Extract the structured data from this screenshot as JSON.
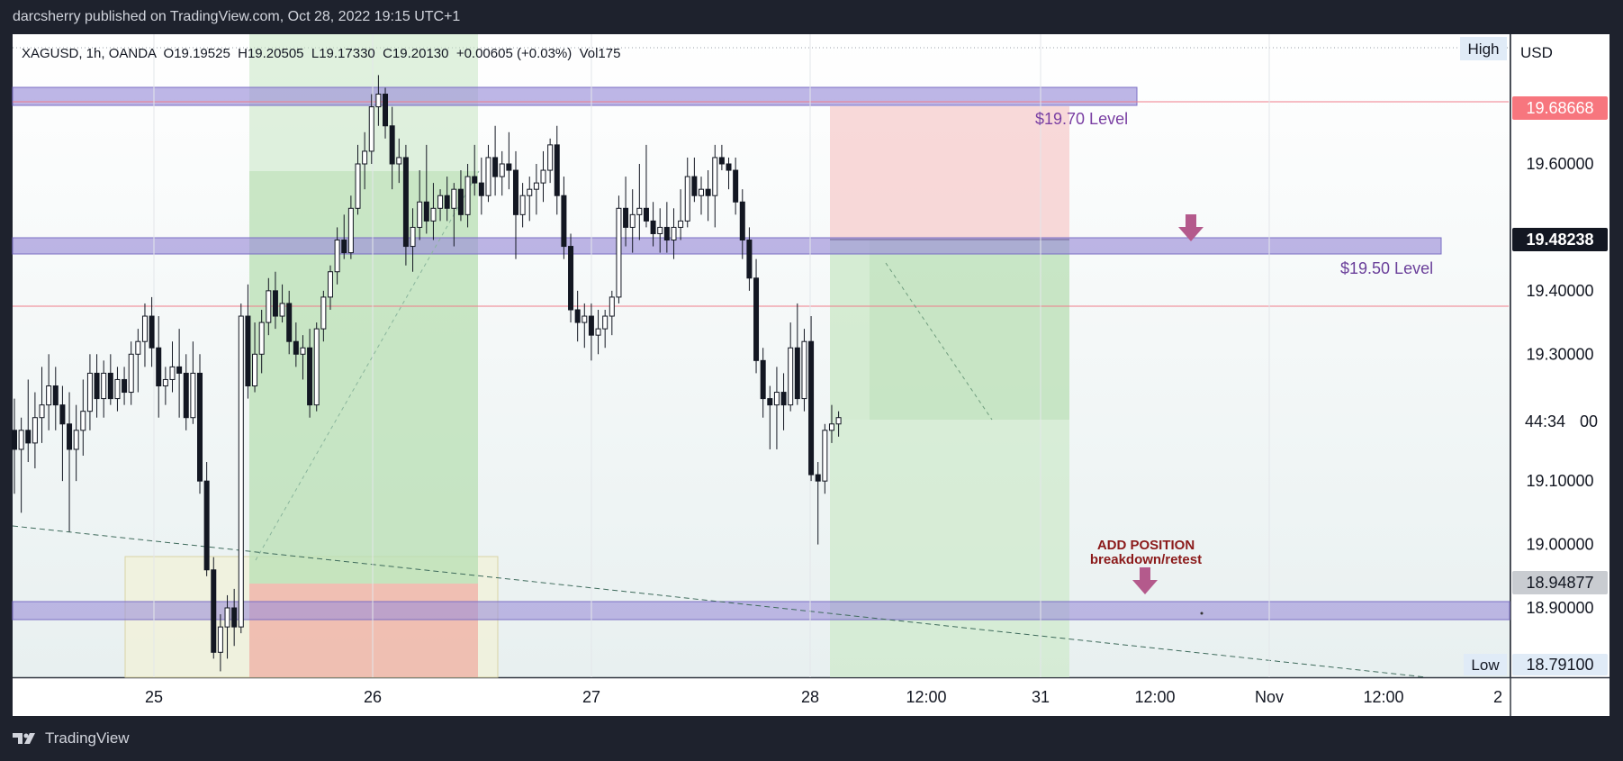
{
  "header": {
    "published": "darcsherry published on TradingView.com, Oct 28, 2022 19:15 UTC+1"
  },
  "footer": {
    "brand": "TradingView",
    "logo_icon": "tradingview-logo-icon"
  },
  "chart_data": {
    "type": "candlestick",
    "symbol_line": "XAGUSD, 1h, OANDA  O19.19525  H19.20505  L19.17330  C19.20130  +0.00605 (+0.03%)  Vol175",
    "currency": "USD",
    "ylim": [
      18.79,
      19.72
    ],
    "y_ticks": [
      "19.60000",
      "19.40000",
      "19.30000",
      "19.10000",
      "19.00000",
      "18.90000"
    ],
    "x_ticks": [
      "25",
      "26",
      "27",
      "28",
      "12:00",
      "31",
      "12:00",
      "Nov",
      "12:00",
      "2"
    ],
    "price_labels": {
      "red": "19.68668",
      "current": "19.48238",
      "countdown": "44:34",
      "countdown_suffix": "00",
      "gray": "18.94877",
      "low_value": "18.79100"
    },
    "high_label": "High",
    "low_label": "Low",
    "annotations": {
      "level_1970": "$19.70 Level",
      "level_1950": "$19.50 Level",
      "add_position_1": "ADD POSITION",
      "add_position_2": "breakdown/retest"
    },
    "zones": [
      {
        "name": "resistance-19.70",
        "from": 19.675,
        "to": 19.7
      },
      {
        "name": "resistance-19.50",
        "from": 19.46,
        "to": 19.485
      },
      {
        "name": "support-18.90",
        "from": 18.895,
        "to": 18.922
      }
    ],
    "horizontal_lines": [
      19.68668,
      19.38
    ],
    "candles": [
      {
        "o": 19.18,
        "h": 19.23,
        "l": 19.08,
        "c": 19.15
      },
      {
        "o": 19.15,
        "h": 19.2,
        "l": 19.05,
        "c": 19.18
      },
      {
        "o": 19.18,
        "h": 19.26,
        "l": 19.13,
        "c": 19.16
      },
      {
        "o": 19.16,
        "h": 19.24,
        "l": 19.12,
        "c": 19.2
      },
      {
        "o": 19.2,
        "h": 19.28,
        "l": 19.16,
        "c": 19.22
      },
      {
        "o": 19.22,
        "h": 19.3,
        "l": 19.18,
        "c": 19.25
      },
      {
        "o": 19.25,
        "h": 19.28,
        "l": 19.18,
        "c": 19.22
      },
      {
        "o": 19.22,
        "h": 19.25,
        "l": 19.1,
        "c": 19.19
      },
      {
        "o": 19.19,
        "h": 19.24,
        "l": 19.02,
        "c": 19.15
      },
      {
        "o": 19.15,
        "h": 19.22,
        "l": 19.1,
        "c": 19.18
      },
      {
        "o": 19.18,
        "h": 19.26,
        "l": 19.14,
        "c": 19.21
      },
      {
        "o": 19.21,
        "h": 19.3,
        "l": 19.18,
        "c": 19.27
      },
      {
        "o": 19.27,
        "h": 19.3,
        "l": 19.2,
        "c": 19.23
      },
      {
        "o": 19.23,
        "h": 19.29,
        "l": 19.2,
        "c": 19.27
      },
      {
        "o": 19.27,
        "h": 19.3,
        "l": 19.22,
        "c": 19.23
      },
      {
        "o": 19.23,
        "h": 19.28,
        "l": 19.21,
        "c": 19.26
      },
      {
        "o": 19.26,
        "h": 19.28,
        "l": 19.22,
        "c": 19.24
      },
      {
        "o": 19.24,
        "h": 19.32,
        "l": 19.22,
        "c": 19.3
      },
      {
        "o": 19.3,
        "h": 19.34,
        "l": 19.24,
        "c": 19.32
      },
      {
        "o": 19.32,
        "h": 19.38,
        "l": 19.28,
        "c": 19.36
      },
      {
        "o": 19.36,
        "h": 19.39,
        "l": 19.28,
        "c": 19.31
      },
      {
        "o": 19.31,
        "h": 19.36,
        "l": 19.2,
        "c": 19.25
      },
      {
        "o": 19.25,
        "h": 19.28,
        "l": 19.22,
        "c": 19.26
      },
      {
        "o": 19.26,
        "h": 19.32,
        "l": 19.24,
        "c": 19.28
      },
      {
        "o": 19.28,
        "h": 19.34,
        "l": 19.2,
        "c": 19.27
      },
      {
        "o": 19.27,
        "h": 19.3,
        "l": 19.18,
        "c": 19.2
      },
      {
        "o": 19.2,
        "h": 19.32,
        "l": 19.19,
        "c": 19.27
      },
      {
        "o": 19.27,
        "h": 19.3,
        "l": 19.08,
        "c": 19.1
      },
      {
        "o": 19.1,
        "h": 19.13,
        "l": 18.95,
        "c": 18.96
      },
      {
        "o": 18.96,
        "h": 18.98,
        "l": 18.82,
        "c": 18.83
      },
      {
        "o": 18.83,
        "h": 18.89,
        "l": 18.8,
        "c": 18.87
      },
      {
        "o": 18.87,
        "h": 18.92,
        "l": 18.82,
        "c": 18.9
      },
      {
        "o": 18.9,
        "h": 18.93,
        "l": 18.84,
        "c": 18.87
      },
      {
        "o": 18.87,
        "h": 19.38,
        "l": 18.86,
        "c": 19.36
      },
      {
        "o": 19.36,
        "h": 19.41,
        "l": 19.23,
        "c": 19.25
      },
      {
        "o": 19.25,
        "h": 19.35,
        "l": 19.24,
        "c": 19.3
      },
      {
        "o": 19.3,
        "h": 19.37,
        "l": 19.27,
        "c": 19.35
      },
      {
        "o": 19.35,
        "h": 19.42,
        "l": 19.33,
        "c": 19.4
      },
      {
        "o": 19.4,
        "h": 19.43,
        "l": 19.34,
        "c": 19.36
      },
      {
        "o": 19.36,
        "h": 19.41,
        "l": 19.35,
        "c": 19.38
      },
      {
        "o": 19.38,
        "h": 19.4,
        "l": 19.3,
        "c": 19.32
      },
      {
        "o": 19.32,
        "h": 19.35,
        "l": 19.28,
        "c": 19.3
      },
      {
        "o": 19.3,
        "h": 19.33,
        "l": 19.26,
        "c": 19.31
      },
      {
        "o": 19.31,
        "h": 19.34,
        "l": 19.2,
        "c": 19.22
      },
      {
        "o": 19.22,
        "h": 19.35,
        "l": 19.21,
        "c": 19.34
      },
      {
        "o": 19.34,
        "h": 19.4,
        "l": 19.32,
        "c": 19.39
      },
      {
        "o": 19.39,
        "h": 19.44,
        "l": 19.37,
        "c": 19.43
      },
      {
        "o": 19.43,
        "h": 19.5,
        "l": 19.41,
        "c": 19.48
      },
      {
        "o": 19.48,
        "h": 19.52,
        "l": 19.45,
        "c": 19.46
      },
      {
        "o": 19.46,
        "h": 19.55,
        "l": 19.45,
        "c": 19.53
      },
      {
        "o": 19.53,
        "h": 19.63,
        "l": 19.52,
        "c": 19.6
      },
      {
        "o": 19.6,
        "h": 19.65,
        "l": 19.56,
        "c": 19.62
      },
      {
        "o": 19.62,
        "h": 19.71,
        "l": 19.6,
        "c": 19.69
      },
      {
        "o": 19.69,
        "h": 19.74,
        "l": 19.66,
        "c": 19.71
      },
      {
        "o": 19.71,
        "h": 19.72,
        "l": 19.64,
        "c": 19.66
      },
      {
        "o": 19.66,
        "h": 19.69,
        "l": 19.56,
        "c": 19.6
      },
      {
        "o": 19.6,
        "h": 19.64,
        "l": 19.57,
        "c": 19.61
      },
      {
        "o": 19.61,
        "h": 19.63,
        "l": 19.44,
        "c": 19.47
      },
      {
        "o": 19.47,
        "h": 19.53,
        "l": 19.43,
        "c": 19.5
      },
      {
        "o": 19.5,
        "h": 19.59,
        "l": 19.48,
        "c": 19.54
      },
      {
        "o": 19.54,
        "h": 19.63,
        "l": 19.49,
        "c": 19.51
      },
      {
        "o": 19.51,
        "h": 19.57,
        "l": 19.48,
        "c": 19.53
      },
      {
        "o": 19.53,
        "h": 19.56,
        "l": 19.51,
        "c": 19.55
      },
      {
        "o": 19.55,
        "h": 19.58,
        "l": 19.51,
        "c": 19.53
      },
      {
        "o": 19.53,
        "h": 19.57,
        "l": 19.47,
        "c": 19.56
      },
      {
        "o": 19.56,
        "h": 19.59,
        "l": 19.51,
        "c": 19.52
      },
      {
        "o": 19.52,
        "h": 19.6,
        "l": 19.5,
        "c": 19.58
      },
      {
        "o": 19.58,
        "h": 19.63,
        "l": 19.55,
        "c": 19.57
      },
      {
        "o": 19.57,
        "h": 19.61,
        "l": 19.52,
        "c": 19.55
      },
      {
        "o": 19.55,
        "h": 19.63,
        "l": 19.54,
        "c": 19.61
      },
      {
        "o": 19.61,
        "h": 19.66,
        "l": 19.55,
        "c": 19.58
      },
      {
        "o": 19.58,
        "h": 19.62,
        "l": 19.55,
        "c": 19.6
      },
      {
        "o": 19.6,
        "h": 19.65,
        "l": 19.56,
        "c": 19.59
      },
      {
        "o": 19.59,
        "h": 19.62,
        "l": 19.45,
        "c": 19.52
      },
      {
        "o": 19.52,
        "h": 19.57,
        "l": 19.5,
        "c": 19.55
      },
      {
        "o": 19.55,
        "h": 19.58,
        "l": 19.51,
        "c": 19.56
      },
      {
        "o": 19.56,
        "h": 19.6,
        "l": 19.52,
        "c": 19.57
      },
      {
        "o": 19.57,
        "h": 19.62,
        "l": 19.54,
        "c": 19.59
      },
      {
        "o": 19.59,
        "h": 19.64,
        "l": 19.57,
        "c": 19.63
      },
      {
        "o": 19.63,
        "h": 19.66,
        "l": 19.52,
        "c": 19.55
      },
      {
        "o": 19.55,
        "h": 19.58,
        "l": 19.45,
        "c": 19.47
      },
      {
        "o": 19.47,
        "h": 19.49,
        "l": 19.35,
        "c": 19.37
      },
      {
        "o": 19.37,
        "h": 19.4,
        "l": 19.32,
        "c": 19.35
      },
      {
        "o": 19.35,
        "h": 19.38,
        "l": 19.31,
        "c": 19.36
      },
      {
        "o": 19.36,
        "h": 19.38,
        "l": 19.29,
        "c": 19.33
      },
      {
        "o": 19.33,
        "h": 19.37,
        "l": 19.3,
        "c": 19.34
      },
      {
        "o": 19.34,
        "h": 19.37,
        "l": 19.31,
        "c": 19.36
      },
      {
        "o": 19.36,
        "h": 19.4,
        "l": 19.33,
        "c": 19.39
      },
      {
        "o": 19.39,
        "h": 19.55,
        "l": 19.38,
        "c": 19.53
      },
      {
        "o": 19.53,
        "h": 19.58,
        "l": 19.47,
        "c": 19.5
      },
      {
        "o": 19.5,
        "h": 19.56,
        "l": 19.46,
        "c": 19.52
      },
      {
        "o": 19.52,
        "h": 19.6,
        "l": 19.48,
        "c": 19.53
      },
      {
        "o": 19.53,
        "h": 19.63,
        "l": 19.5,
        "c": 19.51
      },
      {
        "o": 19.51,
        "h": 19.54,
        "l": 19.47,
        "c": 19.49
      },
      {
        "o": 19.49,
        "h": 19.53,
        "l": 19.46,
        "c": 19.5
      },
      {
        "o": 19.5,
        "h": 19.54,
        "l": 19.46,
        "c": 19.48
      },
      {
        "o": 19.48,
        "h": 19.53,
        "l": 19.45,
        "c": 19.5
      },
      {
        "o": 19.5,
        "h": 19.56,
        "l": 19.48,
        "c": 19.51
      },
      {
        "o": 19.51,
        "h": 19.61,
        "l": 19.5,
        "c": 19.58
      },
      {
        "o": 19.58,
        "h": 19.61,
        "l": 19.54,
        "c": 19.55
      },
      {
        "o": 19.55,
        "h": 19.58,
        "l": 19.52,
        "c": 19.56
      },
      {
        "o": 19.56,
        "h": 19.59,
        "l": 19.51,
        "c": 19.55
      },
      {
        "o": 19.55,
        "h": 19.63,
        "l": 19.5,
        "c": 19.61
      },
      {
        "o": 19.61,
        "h": 19.63,
        "l": 19.59,
        "c": 19.6
      },
      {
        "o": 19.6,
        "h": 19.61,
        "l": 19.56,
        "c": 19.59
      },
      {
        "o": 19.59,
        "h": 19.61,
        "l": 19.52,
        "c": 19.54
      },
      {
        "o": 19.54,
        "h": 19.56,
        "l": 19.45,
        "c": 19.48
      },
      {
        "o": 19.48,
        "h": 19.5,
        "l": 19.4,
        "c": 19.42
      },
      {
        "o": 19.42,
        "h": 19.45,
        "l": 19.27,
        "c": 19.29
      },
      {
        "o": 19.29,
        "h": 19.31,
        "l": 19.2,
        "c": 19.23
      },
      {
        "o": 19.23,
        "h": 19.25,
        "l": 19.15,
        "c": 19.22
      },
      {
        "o": 19.22,
        "h": 19.28,
        "l": 19.15,
        "c": 19.24
      },
      {
        "o": 19.24,
        "h": 19.27,
        "l": 19.18,
        "c": 19.22
      },
      {
        "o": 19.22,
        "h": 19.35,
        "l": 19.21,
        "c": 19.31
      },
      {
        "o": 19.31,
        "h": 19.38,
        "l": 19.22,
        "c": 19.23
      },
      {
        "o": 19.23,
        "h": 19.34,
        "l": 19.21,
        "c": 19.32
      },
      {
        "o": 19.32,
        "h": 19.36,
        "l": 19.1,
        "c": 19.11
      },
      {
        "o": 19.11,
        "h": 19.13,
        "l": 19.0,
        "c": 19.1
      },
      {
        "o": 19.1,
        "h": 19.19,
        "l": 19.08,
        "c": 19.18
      },
      {
        "o": 19.18,
        "h": 19.22,
        "l": 19.16,
        "c": 19.19
      },
      {
        "o": 19.19,
        "h": 19.21,
        "l": 19.17,
        "c": 19.2
      }
    ]
  }
}
